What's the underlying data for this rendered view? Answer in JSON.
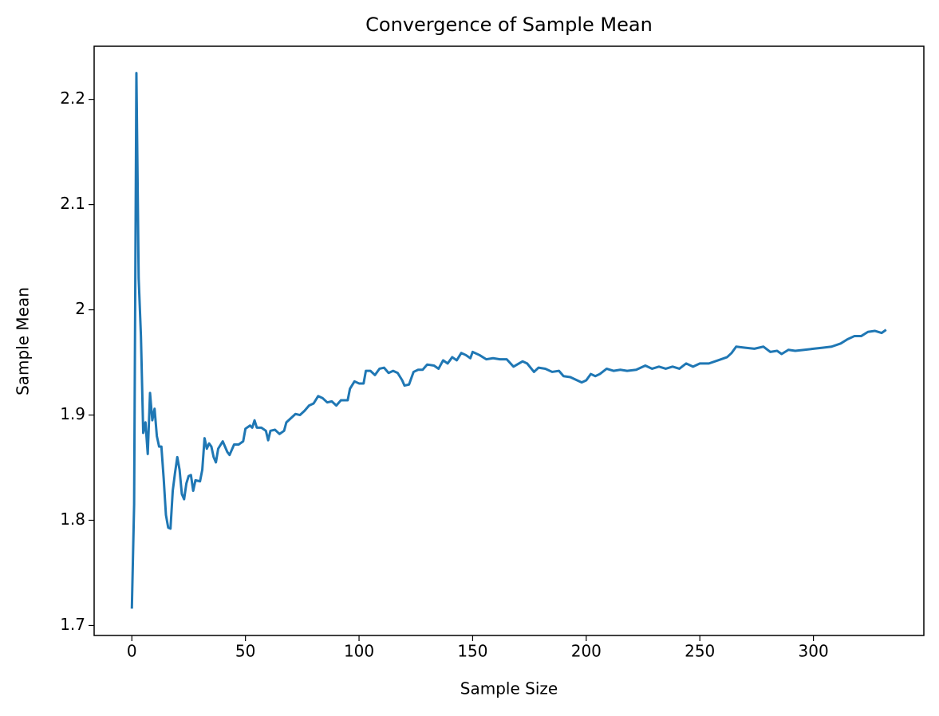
{
  "chart_data": {
    "type": "line",
    "title": "Convergence of Sample Mean",
    "x_label": "Sample Size",
    "y_label": "Sample Mean",
    "x": [
      0,
      1,
      2,
      3,
      4,
      5,
      6,
      7,
      8,
      9,
      10,
      11,
      12,
      13,
      14,
      15,
      16,
      17,
      18,
      19,
      20,
      21,
      22,
      23,
      24,
      25,
      26,
      27,
      28,
      30,
      31,
      32,
      33,
      34,
      35,
      36,
      37,
      38,
      40,
      42,
      43,
      45,
      47,
      49,
      50,
      52,
      53,
      54,
      55,
      57,
      59,
      60,
      61,
      63,
      65,
      67,
      68,
      70,
      72,
      74,
      76,
      78,
      80,
      82,
      84,
      86,
      88,
      90,
      92,
      95,
      96,
      98,
      100,
      102,
      103,
      105,
      107,
      109,
      111,
      113,
      115,
      117,
      119,
      120,
      122,
      124,
      126,
      128,
      130,
      133,
      135,
      137,
      139,
      141,
      143,
      145,
      147,
      149,
      150,
      153,
      156,
      159,
      162,
      165,
      168,
      172,
      174,
      177,
      179,
      182,
      185,
      188,
      190,
      193,
      196,
      198,
      200,
      202,
      204,
      206,
      209,
      212,
      215,
      218,
      222,
      226,
      229,
      232,
      235,
      238,
      241,
      244,
      247,
      250,
      254,
      258,
      262,
      264,
      266,
      270,
      274,
      278,
      281,
      284,
      286,
      289,
      292,
      296,
      300,
      304,
      308,
      312,
      315,
      318,
      321,
      324,
      327,
      330,
      332
    ],
    "series": [
      {
        "name": "Sample Mean",
        "color": "#1f77b4",
        "values": [
          1.716,
          1.815,
          2.225,
          2.03,
          1.975,
          1.883,
          1.893,
          1.863,
          1.921,
          1.895,
          1.906,
          1.88,
          1.87,
          1.87,
          1.84,
          1.805,
          1.793,
          1.792,
          1.828,
          1.845,
          1.86,
          1.848,
          1.825,
          1.82,
          1.835,
          1.842,
          1.843,
          1.828,
          1.838,
          1.837,
          1.848,
          1.878,
          1.868,
          1.873,
          1.87,
          1.86,
          1.855,
          1.868,
          1.875,
          1.865,
          1.862,
          1.872,
          1.872,
          1.875,
          1.887,
          1.89,
          1.888,
          1.895,
          1.888,
          1.888,
          1.885,
          1.876,
          1.885,
          1.886,
          1.882,
          1.885,
          1.893,
          1.897,
          1.901,
          1.9,
          1.904,
          1.909,
          1.911,
          1.918,
          1.916,
          1.912,
          1.913,
          1.909,
          1.914,
          1.914,
          1.925,
          1.932,
          1.93,
          1.93,
          1.942,
          1.942,
          1.938,
          1.944,
          1.945,
          1.94,
          1.942,
          1.94,
          1.933,
          1.928,
          1.929,
          1.941,
          1.943,
          1.943,
          1.948,
          1.947,
          1.944,
          1.952,
          1.949,
          1.955,
          1.952,
          1.959,
          1.957,
          1.954,
          1.96,
          1.957,
          1.953,
          1.954,
          1.953,
          1.953,
          1.946,
          1.951,
          1.949,
          1.941,
          1.945,
          1.944,
          1.941,
          1.942,
          1.937,
          1.936,
          1.933,
          1.931,
          1.933,
          1.939,
          1.937,
          1.939,
          1.944,
          1.942,
          1.943,
          1.942,
          1.943,
          1.947,
          1.944,
          1.946,
          1.944,
          1.946,
          1.944,
          1.949,
          1.946,
          1.949,
          1.949,
          1.952,
          1.955,
          1.959,
          1.965,
          1.964,
          1.963,
          1.965,
          1.96,
          1.961,
          1.958,
          1.962,
          1.961,
          1.962,
          1.963,
          1.964,
          1.965,
          1.968,
          1.972,
          1.975,
          1.975,
          1.979,
          1.98,
          1.978,
          1.981
        ]
      }
    ],
    "xlim": [
      -16.6,
      348.6
    ],
    "ylim": [
      1.6905,
      2.2505
    ],
    "xticks": [
      0,
      50,
      100,
      150,
      200,
      250,
      300
    ],
    "yticks": [
      1.7,
      1.8,
      1.9,
      2.0,
      2.1,
      2.2
    ]
  }
}
